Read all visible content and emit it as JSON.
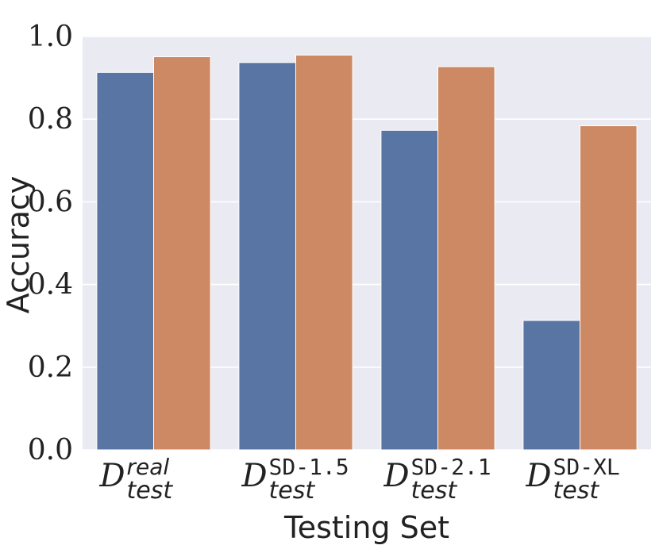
{
  "chart_data": {
    "type": "bar",
    "xlabel": "Testing Set",
    "ylabel": "Accuracy",
    "ylim": [
      0,
      1.0
    ],
    "yticks": [
      "0.0",
      "0.2",
      "0.4",
      "0.6",
      "0.8",
      "1.0"
    ],
    "grid": true,
    "categories": [
      {
        "symbol": "D",
        "sup": "real",
        "sub": "test",
        "sup_style": "italic"
      },
      {
        "symbol": "D",
        "sup": "SD-1.5",
        "sub": "test",
        "sup_style": "mono"
      },
      {
        "symbol": "D",
        "sup": "SD-2.1",
        "sub": "test",
        "sup_style": "mono"
      },
      {
        "symbol": "D",
        "sup": "SD-XL",
        "sub": "test",
        "sup_style": "mono"
      }
    ],
    "series": [
      {
        "values": [
          0.913,
          0.937,
          0.773,
          0.313
        ],
        "color": "#5875a4"
      },
      {
        "values": [
          0.951,
          0.955,
          0.927,
          0.784
        ],
        "color": "#cc8963"
      }
    ],
    "background": "#eaeaf2",
    "gridcolor": "#ffffff"
  }
}
